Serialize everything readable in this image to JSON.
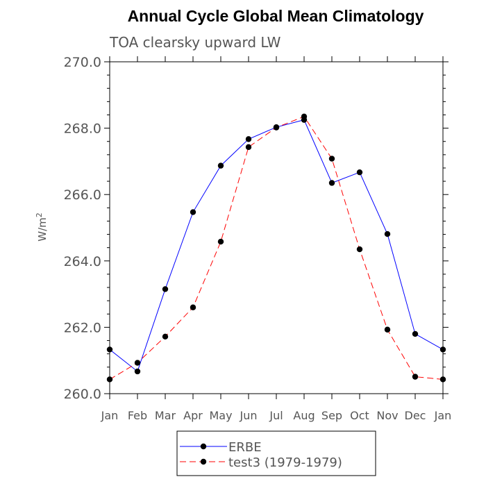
{
  "chart_data": {
    "type": "line",
    "title": "Annual Cycle Global Mean Climatology",
    "subtitle": "TOA clearsky upward LW",
    "ylabel_base": "W/m",
    "ylabel_sup": "2",
    "categories": [
      "Jan",
      "Feb",
      "Mar",
      "Apr",
      "May",
      "Jun",
      "Jul",
      "Aug",
      "Sep",
      "Oct",
      "Nov",
      "Dec",
      "Jan"
    ],
    "ylim": [
      260.0,
      270.0
    ],
    "yticks": [
      "260.0",
      "262.0",
      "264.0",
      "266.0",
      "268.0",
      "270.0"
    ],
    "legend_position": "bottom-center",
    "series": [
      {
        "name": "ERBE",
        "color": "#0000ff",
        "dash": "solid",
        "values": [
          261.33,
          260.67,
          263.15,
          265.47,
          266.87,
          267.67,
          268.03,
          268.25,
          266.35,
          266.67,
          264.81,
          261.8,
          261.33
        ]
      },
      {
        "name": "test3 (1979-1979)",
        "color": "#ff0000",
        "dash": "dashed",
        "values": [
          260.43,
          260.93,
          261.72,
          262.6,
          264.58,
          267.43,
          268.02,
          268.35,
          267.08,
          264.35,
          261.93,
          260.51,
          260.43
        ]
      }
    ]
  }
}
